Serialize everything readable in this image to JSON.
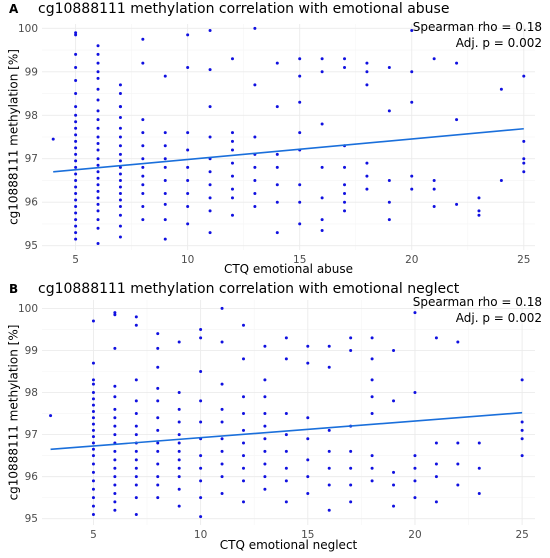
{
  "chart_data": [
    {
      "panel": "A",
      "type": "scatter",
      "title": "cg10888111 methylation correlation with emotional abuse",
      "xlabel": "CTQ emotional abuse",
      "ylabel": "cg10888111 methylation [%]",
      "annotation_lines": [
        "Spearman rho = 0.18",
        "Adj. p = 0.002"
      ],
      "x_ticks": [
        5,
        10,
        15,
        20,
        25
      ],
      "y_ticks": [
        95,
        96,
        97,
        98,
        99,
        100
      ],
      "xlim": [
        3.5,
        25.5
      ],
      "ylim": [
        94.9,
        100.1
      ],
      "grid": true,
      "trend": {
        "x": [
          4,
          25
        ],
        "y": [
          96.7,
          97.69
        ]
      },
      "points": {
        "x": [
          4,
          5,
          5,
          5,
          5,
          5,
          5,
          5,
          5,
          5,
          5,
          5,
          5,
          5,
          5,
          5,
          5,
          5,
          5,
          5,
          5,
          5,
          5,
          5,
          5,
          5,
          5,
          5,
          6,
          6,
          6,
          6,
          6,
          6,
          6,
          6,
          6,
          6,
          6,
          6,
          6,
          6,
          6,
          6,
          6,
          6,
          6,
          6,
          6,
          6,
          6,
          6,
          6,
          7,
          7,
          7,
          7,
          7,
          7,
          7,
          7,
          7,
          7,
          7,
          7,
          7,
          7,
          7,
          7,
          7,
          7,
          7,
          7,
          8,
          8,
          8,
          8,
          8,
          8,
          8,
          8,
          8,
          8,
          8,
          8,
          9,
          9,
          9,
          9,
          9,
          9,
          9,
          9,
          9,
          9,
          10,
          10,
          10,
          10,
          10,
          10,
          10,
          10,
          10,
          11,
          11,
          11,
          11,
          11,
          11,
          11,
          11,
          11,
          11,
          12,
          12,
          12,
          12,
          12,
          12,
          12,
          12,
          12,
          13,
          13,
          13,
          13,
          13,
          13,
          13,
          13,
          14,
          14,
          14,
          14,
          14,
          14,
          14,
          15,
          15,
          15,
          15,
          15,
          15,
          15,
          15,
          16,
          16,
          16,
          16,
          16,
          16,
          16,
          17,
          17,
          17,
          17,
          17,
          17,
          17,
          17,
          18,
          18,
          18,
          18,
          18,
          18,
          19,
          19,
          19,
          19,
          19,
          20,
          20,
          20,
          20,
          20,
          21,
          21,
          21,
          21,
          22,
          22,
          22,
          23,
          23,
          23,
          24,
          24,
          25,
          25,
          25,
          25,
          25
        ],
        "y": [
          97.45,
          95.15,
          95.3,
          95.45,
          95.6,
          95.75,
          95.9,
          96.05,
          96.2,
          96.35,
          96.5,
          96.65,
          96.8,
          96.95,
          97.1,
          97.25,
          97.4,
          97.55,
          97.7,
          97.85,
          98.0,
          98.2,
          98.5,
          98.8,
          99.1,
          99.4,
          99.85,
          99.9,
          95.05,
          95.4,
          95.6,
          95.8,
          95.95,
          96.1,
          96.25,
          96.4,
          96.55,
          96.7,
          96.85,
          97.0,
          97.2,
          97.35,
          97.5,
          97.7,
          97.9,
          98.1,
          98.35,
          98.6,
          98.85,
          99.0,
          99.2,
          99.4,
          99.6,
          95.2,
          95.45,
          95.7,
          95.9,
          96.05,
          96.2,
          96.35,
          96.5,
          96.65,
          96.8,
          96.95,
          97.1,
          97.3,
          97.5,
          97.7,
          97.95,
          98.2,
          98.5,
          98.7,
          98.2,
          95.6,
          95.9,
          96.2,
          96.4,
          96.6,
          96.8,
          97.0,
          97.3,
          97.6,
          97.9,
          99.2,
          99.75,
          95.15,
          95.6,
          95.95,
          96.2,
          96.5,
          96.8,
          97.0,
          97.3,
          97.6,
          98.9,
          95.5,
          95.9,
          96.2,
          96.5,
          96.8,
          97.2,
          97.6,
          99.1,
          99.85,
          95.3,
          95.8,
          96.1,
          96.4,
          96.7,
          97.0,
          97.5,
          98.2,
          99.05,
          99.95,
          95.7,
          96.1,
          96.3,
          96.6,
          96.9,
          97.2,
          97.4,
          97.6,
          99.3,
          95.9,
          96.2,
          96.5,
          96.8,
          97.1,
          97.5,
          98.7,
          100.0,
          95.3,
          96.0,
          96.4,
          96.8,
          97.1,
          98.2,
          99.2,
          95.5,
          96.0,
          96.4,
          97.2,
          97.6,
          98.3,
          98.9,
          99.3,
          95.35,
          95.6,
          96.1,
          96.8,
          97.8,
          99.0,
          99.3,
          95.8,
          96.0,
          96.2,
          96.4,
          96.8,
          97.3,
          99.1,
          99.3,
          96.3,
          96.6,
          96.9,
          98.7,
          99.0,
          99.2,
          95.6,
          96.0,
          96.5,
          98.1,
          99.1,
          96.3,
          96.6,
          98.3,
          99.0,
          99.95,
          95.9,
          96.3,
          96.5,
          99.3,
          95.95,
          97.9,
          99.2,
          95.7,
          95.8,
          96.1,
          96.5,
          98.6,
          96.7,
          96.9,
          97.0,
          97.4,
          98.9
        ]
      }
    },
    {
      "panel": "B",
      "type": "scatter",
      "title": "cg10888111 methylation correlation with emotional neglect",
      "xlabel": "CTQ emotional neglect",
      "ylabel": "cg10888111 methylation [%]",
      "annotation_lines": [
        "Spearman rho = 0.18",
        "Adj. p = 0.002"
      ],
      "x_ticks": [
        5,
        10,
        15,
        20,
        25
      ],
      "y_ticks": [
        95,
        96,
        97,
        98,
        99,
        100
      ],
      "xlim": [
        2.6,
        25.6
      ],
      "ylim": [
        94.85,
        100.2
      ],
      "grid": true,
      "trend": {
        "x": [
          3,
          25
        ],
        "y": [
          96.65,
          97.52
        ]
      },
      "points": {
        "x": [
          3,
          5,
          5,
          5,
          5,
          5,
          5,
          5,
          5,
          5,
          5,
          5,
          5,
          5,
          5,
          5,
          5,
          5,
          5,
          5,
          5,
          5,
          5,
          6,
          6,
          6,
          6,
          6,
          6,
          6,
          6,
          6,
          6,
          6,
          6,
          6,
          6,
          6,
          6,
          6,
          6,
          7,
          7,
          7,
          7,
          7,
          7,
          7,
          7,
          7,
          7,
          7,
          7,
          7,
          7,
          7,
          8,
          8,
          8,
          8,
          8,
          8,
          8,
          8,
          8,
          8,
          8,
          8,
          8,
          9,
          9,
          9,
          9,
          9,
          9,
          9,
          9,
          9,
          9,
          9,
          9,
          10,
          10,
          10,
          10,
          10,
          10,
          10,
          10,
          10,
          10,
          10,
          11,
          11,
          11,
          11,
          11,
          11,
          11,
          11,
          11,
          11,
          12,
          12,
          12,
          12,
          12,
          12,
          12,
          12,
          12,
          12,
          13,
          13,
          13,
          13,
          13,
          13,
          13,
          13,
          13,
          13,
          14,
          14,
          14,
          14,
          14,
          14,
          14,
          14,
          15,
          15,
          15,
          15,
          15,
          15,
          15,
          16,
          16,
          16,
          16,
          16,
          16,
          16,
          17,
          17,
          17,
          17,
          17,
          17,
          17,
          18,
          18,
          18,
          18,
          18,
          18,
          18,
          18,
          19,
          19,
          19,
          19,
          19,
          20,
          20,
          20,
          20,
          20,
          20,
          21,
          21,
          21,
          21,
          21,
          22,
          22,
          22,
          22,
          23,
          23,
          23,
          25,
          25,
          25,
          25,
          25
        ],
        "y": [
          97.45,
          95.1,
          95.3,
          95.5,
          95.7,
          95.9,
          96.1,
          96.3,
          96.5,
          96.65,
          96.8,
          96.95,
          97.1,
          97.25,
          97.4,
          97.55,
          97.7,
          97.85,
          98.0,
          98.2,
          98.3,
          98.7,
          99.7,
          95.2,
          95.4,
          95.6,
          95.8,
          96.0,
          96.2,
          96.4,
          96.6,
          96.8,
          97.0,
          97.2,
          97.4,
          97.6,
          97.9,
          98.15,
          99.05,
          99.85,
          99.9,
          95.1,
          95.5,
          95.8,
          96.0,
          96.2,
          96.4,
          96.6,
          96.8,
          97.0,
          97.2,
          97.5,
          97.8,
          98.3,
          99.8,
          99.6,
          95.5,
          95.8,
          96.0,
          96.3,
          96.6,
          96.8,
          97.1,
          97.4,
          97.8,
          98.1,
          98.6,
          99.05,
          99.4,
          95.3,
          95.7,
          96.0,
          96.2,
          96.4,
          96.6,
          96.8,
          97.0,
          97.3,
          97.6,
          98.0,
          99.2,
          95.05,
          95.5,
          95.9,
          96.2,
          96.5,
          96.9,
          97.3,
          97.8,
          98.5,
          99.3,
          99.5,
          95.6,
          96.0,
          96.3,
          96.6,
          96.9,
          97.3,
          97.6,
          98.2,
          99.2,
          100.0,
          95.4,
          95.9,
          96.2,
          96.5,
          96.8,
          97.1,
          97.5,
          97.9,
          98.8,
          99.6,
          95.7,
          96.0,
          96.3,
          96.6,
          96.9,
          97.2,
          97.5,
          97.9,
          98.3,
          99.1,
          95.4,
          95.9,
          96.2,
          96.6,
          97.0,
          97.5,
          98.8,
          99.3,
          95.6,
          96.0,
          96.4,
          96.9,
          97.4,
          98.7,
          99.1,
          95.2,
          95.8,
          96.2,
          96.6,
          97.1,
          98.6,
          99.1,
          95.4,
          95.8,
          96.2,
          96.6,
          97.2,
          99.0,
          99.3,
          95.9,
          96.2,
          96.5,
          97.5,
          97.9,
          98.3,
          98.8,
          99.3,
          95.3,
          95.8,
          96.1,
          97.8,
          99.0,
          95.5,
          95.9,
          96.2,
          96.5,
          98.0,
          99.9,
          95.4,
          96.0,
          96.3,
          96.8,
          99.3,
          95.8,
          96.3,
          96.8,
          99.2,
          95.6,
          96.2,
          96.8,
          96.5,
          96.9,
          97.1,
          97.3,
          98.3
        ]
      }
    }
  ]
}
